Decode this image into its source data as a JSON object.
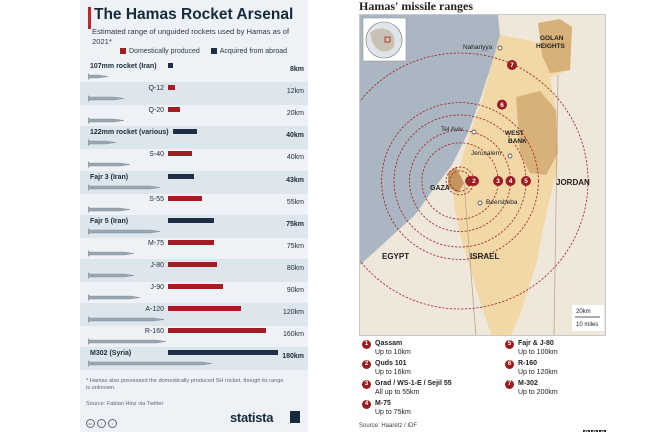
{
  "left": {
    "title": "The Hamas Rocket Arsenal",
    "subtitle": "Estimated range of unguided rockets used by Hamas as of 2021*",
    "legend": {
      "domestic": "Domestically produced",
      "abroad": "Acquired from abroad"
    },
    "colors": {
      "domestic": "#a31e22",
      "abroad": "#1c2f46"
    },
    "footnote": "* Hamas also possessed the domestically produced SH rocket, though its range is unknown.",
    "source": "Source: Fabian Hinz via Twitter",
    "cc_icons": [
      "cc-icon",
      "info-icon",
      "equals-icon"
    ],
    "brand": "statista"
  },
  "chart_data": [
    {
      "type": "bar",
      "title": "The Hamas Rocket Arsenal",
      "subtitle": "Estimated range of unguided rockets used by Hamas as of 2021*",
      "categories": [
        "107mm rocket (Iran)",
        "Q-12",
        "Q-20",
        "122mm rocket (various)",
        "S-40",
        "Fajr 3 (Iran)",
        "S-55",
        "Fajr 5 (Iran)",
        "M-75",
        "J-80",
        "J-90",
        "A-120",
        "R-160",
        "M302 (Syria)"
      ],
      "values": [
        8,
        12,
        20,
        40,
        40,
        43,
        55,
        75,
        75,
        80,
        90,
        120,
        160,
        180
      ],
      "value_labels": [
        "8km",
        "12km",
        "20km",
        "40km",
        "40km",
        "43km",
        "55km",
        "75km",
        "75km",
        "80km",
        "90km",
        "120km",
        "160km",
        "180km"
      ],
      "origin": [
        "abroad",
        "domestic",
        "domestic",
        "abroad",
        "domestic",
        "abroad",
        "domestic",
        "abroad",
        "domestic",
        "domestic",
        "domestic",
        "domestic",
        "domestic",
        "abroad"
      ],
      "legend": [
        "Domestically produced",
        "Acquired from abroad"
      ],
      "legend_position": "top",
      "unit": "km",
      "xlim": [
        0,
        180
      ]
    }
  ],
  "right": {
    "title": "Hamas' missile ranges",
    "places": {
      "nahariyya": "Nahariyya",
      "golan": "GOLAN HEIGHTS",
      "tel_aviv": "Tel Aviv",
      "west_bank": "WEST BANK",
      "jerusalem": "Jerusalem",
      "gaza": "GAZA",
      "beersheba": "Beersheba",
      "jordan": "JORDAN",
      "egypt": "EGYPT",
      "israel": "ISRAEL"
    },
    "scale": {
      "km": "20km",
      "miles": "10 miles"
    },
    "ring_radii_km": [
      10,
      16,
      55,
      75,
      100,
      120,
      200
    ],
    "legend_items": [
      {
        "num": "1",
        "name": "Qassam",
        "sub": "Up to 10km"
      },
      {
        "num": "2",
        "name": "Quds 101",
        "sub": "Up to 16km"
      },
      {
        "num": "3",
        "name": "Grad / WS-1-E / Sejil 55",
        "sub": "All up to 55km"
      },
      {
        "num": "4",
        "name": "M-75",
        "sub": "Up to 75km"
      },
      {
        "num": "5",
        "name": "Fajr & J-80",
        "sub": "Up to 100km"
      },
      {
        "num": "6",
        "name": "R-160",
        "sub": "Up to 120km"
      },
      {
        "num": "7",
        "name": "M-302",
        "sub": "Up to 200km"
      }
    ],
    "source": "Source: Haaretz / IDF",
    "brand": [
      "B",
      "B",
      "C"
    ],
    "colors": {
      "ring": "#a31e22",
      "sea": "#aab6c1",
      "land_other": "#efe7da",
      "israel": "#f1d8a6",
      "territory": "#d8b079"
    }
  }
}
